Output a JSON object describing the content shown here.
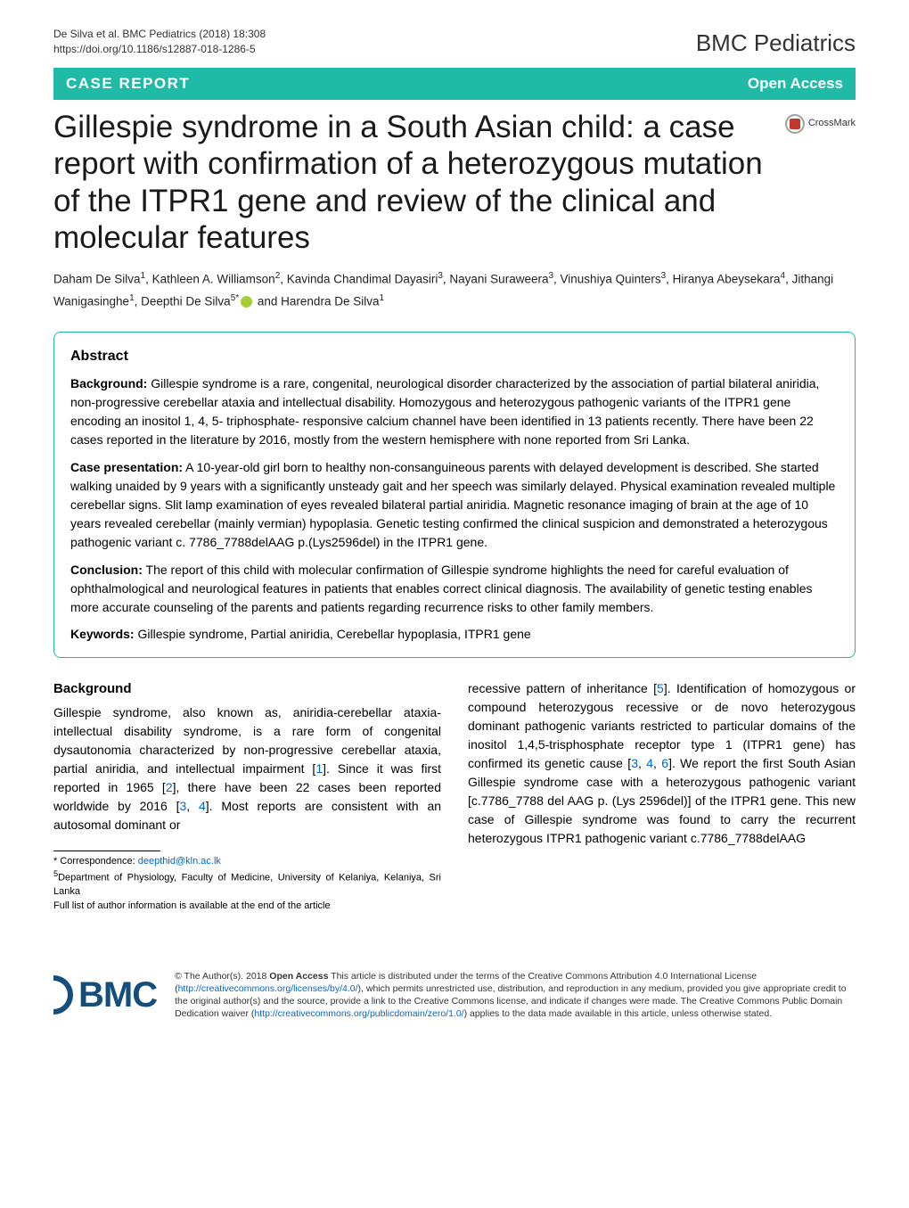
{
  "meta": {
    "running_head": "De Silva et al. BMC Pediatrics (2018) 18:308",
    "doi": "https://doi.org/10.1186/s12887-018-1286-5",
    "journal_brand": "BMC Pediatrics"
  },
  "banner": {
    "article_type": "CASE REPORT",
    "access": "Open Access"
  },
  "crossmark_label": "CrossMark",
  "title": "Gillespie syndrome in a South Asian child: a case report with confirmation of a heterozygous mutation of the ITPR1 gene and review of the clinical and molecular features",
  "authors_html": "Daham De Silva<sup>1</sup>, Kathleen A. Williamson<sup>2</sup>, Kavinda Chandimal Dayasiri<sup>3</sup>, Nayani Suraweera<sup>3</sup>, Vinushiya Quinters<sup>3</sup>, Hiranya Abeysekara<sup>4</sup>, Jithangi Wanigasinghe<sup>1</sup>, Deepthi De Silva<sup>5*</sup><span class='orcid'></span> and Harendra De Silva<sup>1</sup>",
  "abstract": {
    "heading": "Abstract",
    "background_label": "Background:",
    "background": " Gillespie syndrome is a rare, congenital, neurological disorder characterized by the association of partial bilateral aniridia, non-progressive cerebellar ataxia and intellectual disability. Homozygous and heterozygous pathogenic variants of the ITPR1 gene encoding an inositol 1, 4, 5- triphosphate- responsive calcium channel have been identified in 13 patients recently. There have been 22 cases reported in the literature by 2016, mostly from the western hemisphere with none reported from Sri Lanka.",
    "case_label": "Case presentation:",
    "case": " A 10-year-old girl born to healthy non-consanguineous parents with delayed development is described. She started walking unaided by 9 years with a significantly unsteady gait and her speech was similarly delayed. Physical examination revealed multiple cerebellar signs. Slit lamp examination of eyes revealed bilateral partial aniridia. Magnetic resonance imaging of brain at the age of 10 years revealed cerebellar (mainly vermian) hypoplasia. Genetic testing confirmed the clinical suspicion and demonstrated a heterozygous pathogenic variant c. 7786_7788delAAG p.(Lys2596del) in the ITPR1 gene.",
    "conclusion_label": "Conclusion:",
    "conclusion": " The report of this child with molecular confirmation of Gillespie syndrome highlights the need for careful evaluation of ophthalmological and neurological features in patients that enables correct clinical diagnosis. The availability of genetic testing enables more accurate counseling of the parents and patients regarding recurrence risks to other family members.",
    "keywords_label": "Keywords:",
    "keywords": " Gillespie syndrome, Partial aniridia, Cerebellar hypoplasia, ITPR1 gene"
  },
  "body": {
    "background_heading": "Background",
    "col1_p1a": "Gillespie syndrome, also known as, aniridia-cerebellar ataxia-intellectual disability syndrome, is a rare form of congenital dysautonomia characterized by non-progressive cerebellar ataxia, partial aniridia, and intellectual impairment [",
    "ref1": "1",
    "col1_p1b": "]. Since it was first reported in 1965 [",
    "ref2": "2",
    "col1_p1c": "], there have been 22 cases been reported worldwide by 2016 [",
    "ref3a": "3",
    "sep34": ", ",
    "ref4a": "4",
    "col1_p1d": "]. Most reports are consistent with an autosomal dominant or",
    "col2_p1a": "recessive pattern of inheritance [",
    "ref5": "5",
    "col2_p1b": "]. Identification of homozygous or compound heterozygous recessive or de novo heterozygous dominant pathogenic variants restricted to particular domains of the inositol 1,4,5-trisphosphate receptor type 1 (ITPR1 gene) has confirmed its genetic cause [",
    "ref3b": "3",
    "sep34b": ", ",
    "ref4b": "4",
    "sep46": ", ",
    "ref6": "6",
    "col2_p1c": "]. We report the first South Asian Gillespie syndrome case with a heterozygous pathogenic variant [c.7786_7788 del AAG p. (Lys 2596del)] of the ITPR1 gene. This new case of Gillespie syndrome was found to carry the recurrent heterozygous ITPR1 pathogenic variant c.7786_7788delAAG"
  },
  "correspondence": {
    "label": "* Correspondence: ",
    "email": "deepthid@kln.ac.lk",
    "affil": "Department of Physiology, Faculty of Medicine, University of Kelaniya, Kelaniya, Sri Lanka",
    "affil_sup": "5",
    "full_list_note": "Full list of author information is available at the end of the article"
  },
  "footer": {
    "bmc_text": "BMC",
    "license_a": "© The Author(s). 2018 ",
    "open_access_bold": "Open Access",
    "license_b": " This article is distributed under the terms of the Creative Commons Attribution 4.0 International License (",
    "cc_url": "http://creativecommons.org/licenses/by/4.0/",
    "license_c": "), which permits unrestricted use, distribution, and reproduction in any medium, provided you give appropriate credit to the original author(s) and the source, provide a link to the Creative Commons license, and indicate if changes were made. The Creative Commons Public Domain Dedication waiver (",
    "pd_url": "http://creativecommons.org/publicdomain/zero/1.0/",
    "license_d": ") applies to the data made available in this article, unless otherwise stated."
  },
  "colors": {
    "accent": "#1fbba6",
    "link": "#0066cc",
    "bmc_blue": "#144e7a",
    "orcid_green": "#a6ce39",
    "crossmark_red": "#c0392b"
  }
}
